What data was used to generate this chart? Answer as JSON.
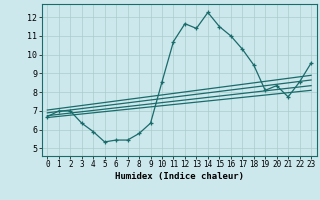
{
  "title": "",
  "xlabel": "Humidex (Indice chaleur)",
  "xlim": [
    -0.5,
    23.5
  ],
  "ylim": [
    4.6,
    12.7
  ],
  "xticks": [
    0,
    1,
    2,
    3,
    4,
    5,
    6,
    7,
    8,
    9,
    10,
    11,
    12,
    13,
    14,
    15,
    16,
    17,
    18,
    19,
    20,
    21,
    22,
    23
  ],
  "yticks": [
    5,
    6,
    7,
    8,
    9,
    10,
    11,
    12
  ],
  "bg_color": "#cce8ec",
  "grid_color": "#aacccc",
  "line_color": "#1a6b6b",
  "line1_x": [
    0,
    1,
    2,
    3,
    4,
    5,
    6,
    7,
    8,
    9,
    10,
    11,
    12,
    13,
    14,
    15,
    16,
    17,
    18,
    19,
    20,
    21,
    22,
    23
  ],
  "line1_y": [
    6.7,
    7.0,
    7.0,
    6.35,
    5.9,
    5.35,
    5.45,
    5.45,
    5.8,
    6.35,
    8.55,
    10.7,
    11.65,
    11.4,
    12.25,
    11.5,
    11.0,
    10.3,
    9.45,
    8.1,
    8.35,
    7.75,
    8.55,
    9.55
  ],
  "line2_x": [
    0,
    23
  ],
  "line2_y": [
    6.65,
    8.1
  ],
  "line3_x": [
    0,
    23
  ],
  "line3_y": [
    6.75,
    8.35
  ],
  "line4_x": [
    0,
    23
  ],
  "line4_y": [
    6.9,
    8.65
  ],
  "line5_x": [
    0,
    23
  ],
  "line5_y": [
    7.05,
    8.9
  ],
  "tick_fontsize": 5.5,
  "xlabel_fontsize": 6.5
}
